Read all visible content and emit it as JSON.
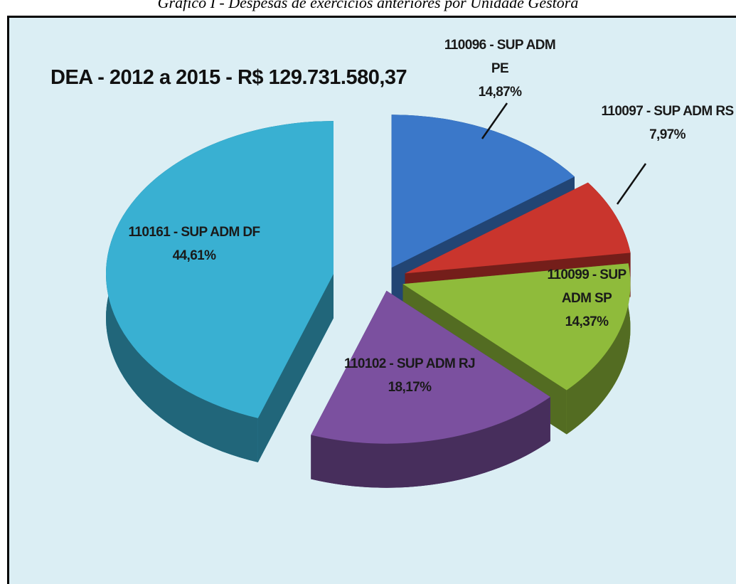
{
  "caption": "Gráfico I - Despesas de exercícios anteriores por Unidade Gestora",
  "chart_data": {
    "type": "pie",
    "title": "DEA - 2012 a 2015 - R$  129.731.580,37",
    "categories": [
      "110096 - SUP ADM PE",
      "110097 - SUP ADM RS",
      "110099 - SUP ADM SP",
      "110102 - SUP ADM RJ",
      "110161 - SUP ADM DF"
    ],
    "values": [
      14.87,
      7.97,
      14.37,
      18.17,
      44.61
    ],
    "value_labels": [
      "14,87%",
      "7,97%",
      "14,37%",
      "18,17%",
      "44,61%"
    ],
    "colors": [
      "#3b78c9",
      "#c9352d",
      "#8fbb3b",
      "#7b509f",
      "#39b0d2"
    ]
  }
}
